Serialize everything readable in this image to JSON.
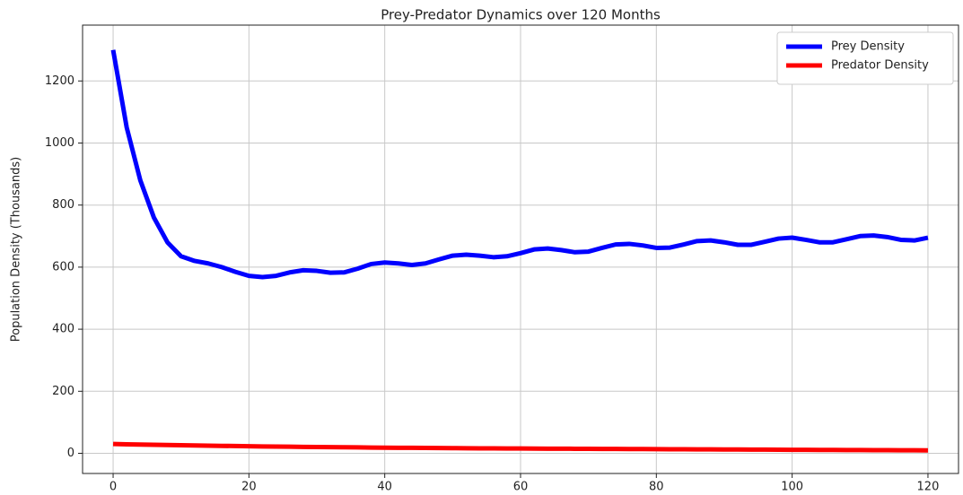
{
  "chart_data": {
    "type": "line",
    "title": "Prey-Predator Dynamics over 120 Months",
    "y_label": "Population Density (Thousands)",
    "x": [
      0,
      2,
      4,
      6,
      8,
      10,
      12,
      14,
      16,
      18,
      20,
      22,
      24,
      26,
      28,
      30,
      32,
      34,
      36,
      38,
      40,
      42,
      44,
      46,
      48,
      50,
      52,
      54,
      56,
      58,
      60,
      62,
      64,
      66,
      68,
      70,
      72,
      74,
      76,
      78,
      80,
      82,
      84,
      86,
      88,
      90,
      92,
      94,
      96,
      98,
      100,
      102,
      104,
      106,
      108,
      110,
      112,
      114,
      116,
      118,
      120
    ],
    "series": [
      {
        "name": "Prey Density",
        "color": "#0000ff",
        "values": [
          1300,
          1050,
          880,
          760,
          680,
          635,
          620,
          612,
          600,
          585,
          572,
          568,
          572,
          583,
          590,
          588,
          582,
          583,
          595,
          610,
          615,
          612,
          607,
          612,
          625,
          637,
          640,
          637,
          632,
          635,
          645,
          657,
          660,
          655,
          648,
          650,
          662,
          673,
          675,
          670,
          662,
          663,
          673,
          684,
          686,
          680,
          672,
          672,
          682,
          692,
          695,
          688,
          680,
          680,
          690,
          700,
          702,
          697,
          688,
          686,
          695
        ]
      },
      {
        "name": "Predator Density",
        "color": "#ff0000",
        "values": [
          30,
          29.1,
          28.3,
          27.5,
          26.7,
          26,
          25.3,
          24.6,
          24,
          23.4,
          22.8,
          22.2,
          21.7,
          21.2,
          20.7,
          20.2,
          19.8,
          19.4,
          19,
          18.6,
          18.2,
          17.9,
          17.6,
          17.3,
          17,
          16.7,
          16.4,
          16.1,
          15.9,
          15.6,
          15.4,
          15.2,
          15,
          14.8,
          14.6,
          14.4,
          14.2,
          14,
          13.8,
          13.6,
          13.4,
          13.2,
          13,
          12.8,
          12.6,
          12.4,
          12.2,
          12,
          11.8,
          11.6,
          11.4,
          11.2,
          11,
          10.8,
          10.6,
          10.4,
          10.2,
          10,
          9.8,
          9.6,
          9.4
        ]
      }
    ],
    "xlim": [
      -4.5,
      124.5
    ],
    "ylim": [
      -65,
      1380
    ],
    "xticks": [
      0,
      20,
      40,
      60,
      80,
      100,
      120
    ],
    "yticks": [
      0,
      200,
      400,
      600,
      800,
      1000,
      1200
    ],
    "grid": true,
    "legend": "upper right"
  }
}
